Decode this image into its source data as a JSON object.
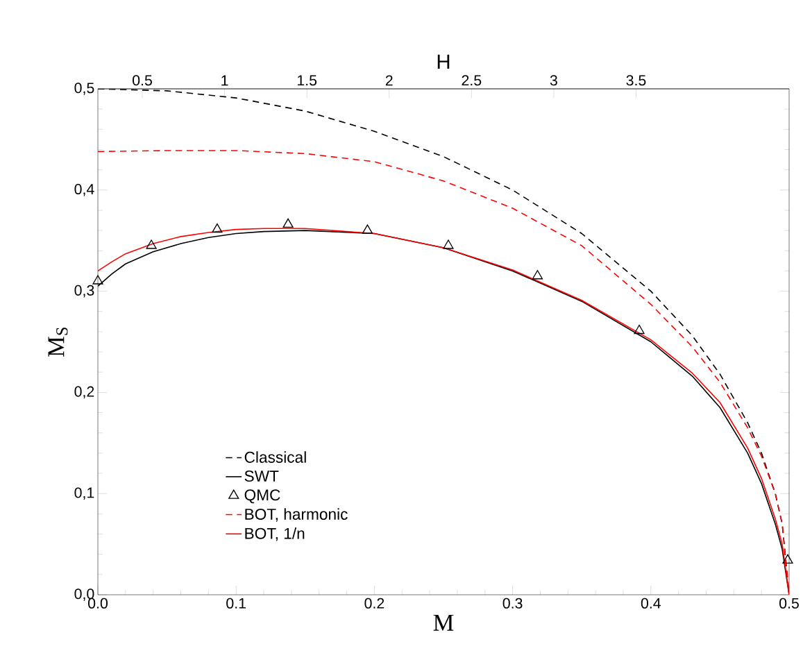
{
  "chart_data": {
    "type": "line",
    "xlabel": "M",
    "ylabel": "M$_{S}$",
    "x2label": "H",
    "xlim": [
      0,
      0.5
    ],
    "ylim": [
      0,
      0.5
    ],
    "x2lim": [
      0.23,
      4.43
    ],
    "xticks": [
      {
        "value": 0,
        "label": "0.0"
      },
      {
        "value": 0.1,
        "label": "0.1"
      },
      {
        "value": 0.2,
        "label": "0.2"
      },
      {
        "value": 0.3,
        "label": "0.3"
      },
      {
        "value": 0.4,
        "label": "0.4"
      },
      {
        "value": 0.5,
        "label": "0.5"
      }
    ],
    "yticks": [
      {
        "value": 0,
        "label": "0,0"
      },
      {
        "value": 0.1,
        "label": "0,1"
      },
      {
        "value": 0.2,
        "label": "0,2"
      },
      {
        "value": 0.3,
        "label": "0,3"
      },
      {
        "value": 0.4,
        "label": "0,4"
      },
      {
        "value": 0.5,
        "label": "0,5"
      }
    ],
    "x2ticks": [
      0.5,
      1,
      1.5,
      2,
      2.5,
      3,
      3.5
    ],
    "legend": "bottom left",
    "grid": false,
    "series": [
      {
        "name": "Classical",
        "color": "#000000",
        "line_style": "dashed",
        "marker": "none",
        "x": [
          0,
          0.05,
          0.1,
          0.15,
          0.2,
          0.25,
          0.3,
          0.35,
          0.4,
          0.43,
          0.45,
          0.47,
          0.48,
          0.49,
          0.495,
          0.5
        ],
        "values": [
          0.5,
          0.498,
          0.491,
          0.478,
          0.458,
          0.433,
          0.4,
          0.357,
          0.3,
          0.256,
          0.218,
          0.17,
          0.14,
          0.1,
          0.07,
          0.0
        ]
      },
      {
        "name": "SWT",
        "color": "#000000",
        "line_style": "solid",
        "marker": "none",
        "x": [
          0,
          0.01,
          0.02,
          0.04,
          0.06,
          0.08,
          0.1,
          0.12,
          0.15,
          0.2,
          0.25,
          0.3,
          0.35,
          0.4,
          0.43,
          0.45,
          0.47,
          0.48,
          0.49,
          0.495,
          0.5
        ],
        "values": [
          0.305,
          0.317,
          0.327,
          0.339,
          0.347,
          0.353,
          0.357,
          0.359,
          0.36,
          0.357,
          0.343,
          0.32,
          0.29,
          0.25,
          0.216,
          0.185,
          0.14,
          0.11,
          0.07,
          0.045,
          0.0
        ]
      },
      {
        "name": "QMC",
        "type": "scatter",
        "color": "#000000",
        "marker": "triangle",
        "x": [
          0,
          0.0387,
          0.0863,
          0.1376,
          0.195,
          0.2535,
          0.318,
          0.3916,
          0.499
        ],
        "values": [
          0.31,
          0.345,
          0.361,
          0.366,
          0.36,
          0.345,
          0.315,
          0.261,
          0.034
        ]
      },
      {
        "name": "BOT, harmonic",
        "color": "#ff0000",
        "line_style": "dashed",
        "marker": "none",
        "x": [
          0,
          0.05,
          0.1,
          0.15,
          0.2,
          0.25,
          0.3,
          0.35,
          0.4,
          0.43,
          0.45,
          0.47,
          0.48,
          0.49,
          0.495,
          0.5
        ],
        "values": [
          0.438,
          0.439,
          0.439,
          0.436,
          0.428,
          0.409,
          0.382,
          0.345,
          0.287,
          0.245,
          0.21,
          0.165,
          0.137,
          0.1,
          0.07,
          0.0
        ]
      },
      {
        "name": "BOT, 1/n",
        "color": "#ff0000",
        "line_style": "solid",
        "marker": "none",
        "x": [
          0,
          0.01,
          0.02,
          0.04,
          0.06,
          0.08,
          0.1,
          0.12,
          0.15,
          0.2,
          0.25,
          0.3,
          0.35,
          0.4,
          0.43,
          0.45,
          0.47,
          0.48,
          0.49,
          0.495,
          0.5
        ],
        "values": [
          0.32,
          0.329,
          0.337,
          0.347,
          0.354,
          0.358,
          0.361,
          0.362,
          0.362,
          0.357,
          0.343,
          0.321,
          0.291,
          0.252,
          0.219,
          0.19,
          0.145,
          0.115,
          0.075,
          0.05,
          0.0
        ]
      }
    ]
  }
}
